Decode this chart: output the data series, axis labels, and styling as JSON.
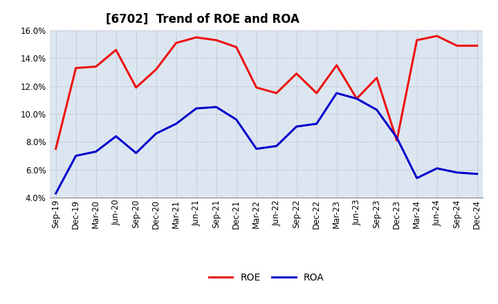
{
  "title": "[6702]  Trend of ROE and ROA",
  "labels": [
    "Sep-19",
    "Dec-19",
    "Mar-20",
    "Jun-20",
    "Sep-20",
    "Dec-20",
    "Mar-21",
    "Jun-21",
    "Sep-21",
    "Dec-21",
    "Mar-22",
    "Jun-22",
    "Sep-22",
    "Dec-22",
    "Mar-23",
    "Jun-23",
    "Sep-23",
    "Dec-23",
    "Mar-24",
    "Jun-24",
    "Sep-24",
    "Dec-24"
  ],
  "ROE": [
    7.5,
    13.3,
    13.4,
    14.6,
    11.9,
    13.2,
    15.1,
    15.5,
    15.3,
    14.8,
    11.9,
    11.5,
    12.9,
    11.5,
    13.5,
    11.1,
    12.6,
    8.1,
    15.3,
    15.6,
    14.9,
    14.9
  ],
  "ROA": [
    4.3,
    7.0,
    7.3,
    8.4,
    7.2,
    8.6,
    9.3,
    10.4,
    10.5,
    9.6,
    7.5,
    7.7,
    9.1,
    9.3,
    11.5,
    11.1,
    10.3,
    8.3,
    5.4,
    6.1,
    5.8,
    5.7
  ],
  "ROE_color": "#ee1111",
  "ROA_color": "#0000cc",
  "ylim_min": 4.0,
  "ylim_max": 16.0,
  "yticks": [
    4.0,
    6.0,
    8.0,
    10.0,
    12.0,
    14.0,
    16.0
  ],
  "grid_color": "#999999",
  "plot_bg_color": "#dce6f1",
  "fig_bg_color": "#ffffff",
  "title_fontsize": 12,
  "legend_fontsize": 10,
  "axis_fontsize": 8.5
}
